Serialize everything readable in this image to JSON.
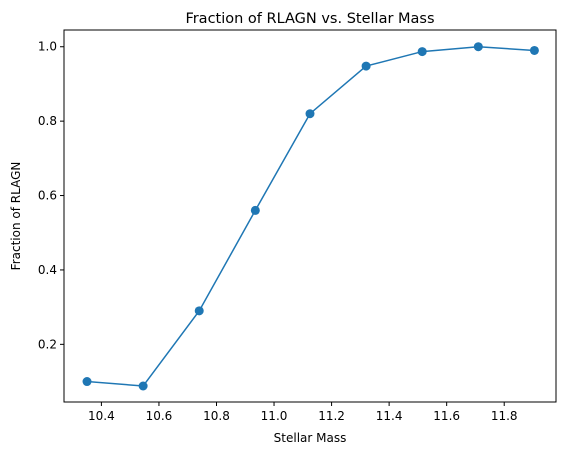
{
  "chart_data": {
    "type": "line",
    "title": "Fraction of RLAGN vs. Stellar Mass",
    "xlabel": "Stellar Mass",
    "ylabel": "Fraction of RLAGN",
    "xlim": [
      10.27,
      11.98
    ],
    "ylim": [
      0.045,
      1.045
    ],
    "xticks": [
      10.4,
      10.6,
      10.8,
      11.0,
      11.2,
      11.4,
      11.6,
      11.8
    ],
    "xtick_labels": [
      "10.4",
      "10.6",
      "10.8",
      "11.0",
      "11.2",
      "11.4",
      "11.6",
      "11.8"
    ],
    "yticks": [
      0.2,
      0.4,
      0.6,
      0.8,
      1.0
    ],
    "ytick_labels": [
      "0.2",
      "0.4",
      "0.6",
      "0.8",
      "1.0"
    ],
    "grid": false,
    "series": [
      {
        "x": [
          10.35,
          10.545,
          10.74,
          10.935,
          11.125,
          11.32,
          11.515,
          11.71,
          11.905
        ],
        "values": [
          0.1,
          0.088,
          0.29,
          0.56,
          0.82,
          0.948,
          0.987,
          1.0,
          0.99
        ],
        "color": "#1f77b4",
        "marker": "circle"
      }
    ]
  }
}
